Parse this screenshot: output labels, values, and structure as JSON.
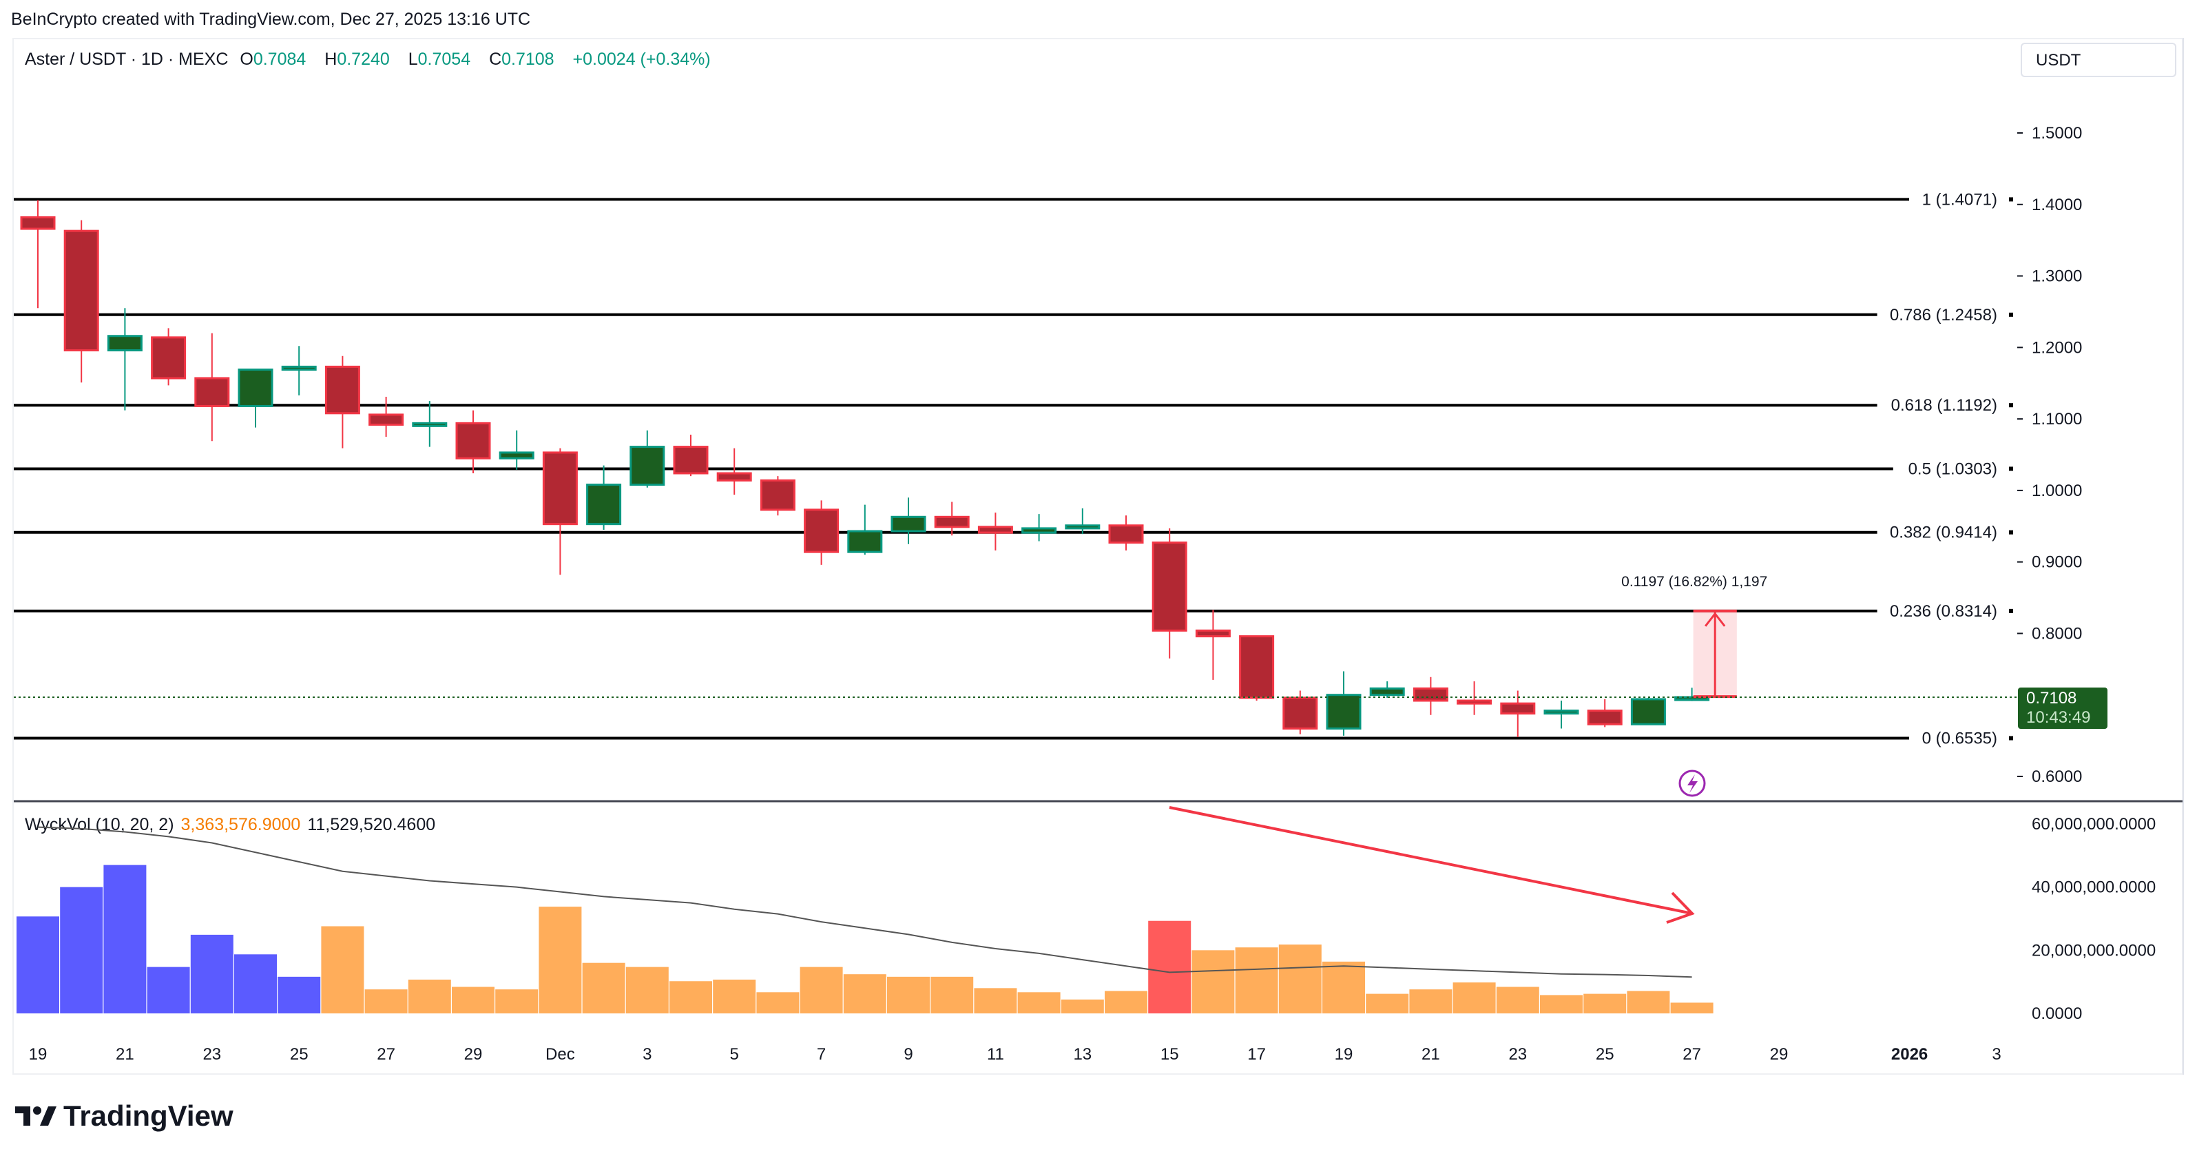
{
  "header": {
    "credit": "BeInCrypto created with TradingView.com, Dec 27, 2025 13:16 UTC"
  },
  "legend": {
    "symbol": "Aster / USDT · 1D · MEXC",
    "o_label": "O",
    "o": "0.7084",
    "h_label": "H",
    "h": "0.7240",
    "l_label": "L",
    "l": "0.7054",
    "c_label": "C",
    "c": "0.7108",
    "change": "+0.0024 (+0.34%)"
  },
  "currency": "USDT",
  "current_price": {
    "value": "0.7108",
    "countdown": "10:43:49"
  },
  "volume_legend": {
    "name": "WyckVol (10, 20, 2)",
    "v1": "3,363,576.9000",
    "v2": "11,529,520.4600"
  },
  "measure": {
    "label": "0.1197 (16.82%) 1,197"
  },
  "brand": {
    "logo": "TradingView"
  },
  "colors": {
    "up": "#089981",
    "up_body": "#1b5e20",
    "down": "#f23645",
    "down_body": "#b22833",
    "vol_blue": "#5b5bff",
    "vol_orange": "#ffad5a",
    "vol_red": "#ff5b5b",
    "arrow": "#f23645",
    "icon": "#9c27b0"
  },
  "chart_data": [
    {
      "type": "candlestick",
      "title": "Aster / USDT · 1D · MEXC",
      "ylim": [
        0.56,
        1.56
      ],
      "yticks": [
        "1.5000",
        "1.4000",
        "1.3000",
        "1.2000",
        "1.1000",
        "1.0000",
        "0.9000",
        "0.8000",
        "0.6000"
      ],
      "ytick_values": [
        1.5,
        1.4,
        1.3,
        1.2,
        1.1,
        1.0,
        0.9,
        0.8,
        0.6
      ],
      "xticks": [
        "19",
        "21",
        "23",
        "25",
        "27",
        "29",
        "Dec",
        "3",
        "5",
        "7",
        "9",
        "11",
        "13",
        "15",
        "17",
        "19",
        "21",
        "23",
        "25",
        "27",
        "29",
        "2026",
        "3"
      ],
      "xtick_days": [
        0,
        2,
        4,
        6,
        8,
        10,
        12,
        14,
        16,
        18,
        20,
        22,
        24,
        26,
        28,
        30,
        32,
        34,
        36,
        38,
        40,
        43,
        45
      ],
      "dates": [
        "Nov 19",
        "Nov 20",
        "Nov 21",
        "Nov 22",
        "Nov 23",
        "Nov 24",
        "Nov 25",
        "Nov 26",
        "Nov 27",
        "Nov 28",
        "Nov 29",
        "Nov 30",
        "Dec 1",
        "Dec 2",
        "Dec 3",
        "Dec 4",
        "Dec 5",
        "Dec 6",
        "Dec 7",
        "Dec 8",
        "Dec 9",
        "Dec 10",
        "Dec 11",
        "Dec 12",
        "Dec 13",
        "Dec 14",
        "Dec 15",
        "Dec 16",
        "Dec 17",
        "Dec 18",
        "Dec 19",
        "Dec 20",
        "Dec 21",
        "Dec 22",
        "Dec 23",
        "Dec 24",
        "Dec 25",
        "Dec 26",
        "Dec 27"
      ],
      "ohlc": [
        [
          1.382,
          1.406,
          1.255,
          1.366
        ],
        [
          1.363,
          1.378,
          1.151,
          1.196
        ],
        [
          1.196,
          1.255,
          1.112,
          1.216
        ],
        [
          1.214,
          1.227,
          1.147,
          1.157
        ],
        [
          1.157,
          1.22,
          1.069,
          1.118
        ],
        [
          1.118,
          1.169,
          1.088,
          1.169
        ],
        [
          1.169,
          1.202,
          1.133,
          1.173
        ],
        [
          1.173,
          1.188,
          1.059,
          1.108
        ],
        [
          1.106,
          1.131,
          1.075,
          1.092
        ],
        [
          1.092,
          1.125,
          1.061,
          1.094
        ],
        [
          1.094,
          1.112,
          1.024,
          1.045
        ],
        [
          1.045,
          1.084,
          1.029,
          1.053
        ],
        [
          1.053,
          1.059,
          0.882,
          0.953
        ],
        [
          0.953,
          1.035,
          0.945,
          1.008
        ],
        [
          1.008,
          1.084,
          1.004,
          1.061
        ],
        [
          1.061,
          1.078,
          1.02,
          1.024
        ],
        [
          1.024,
          1.059,
          0.994,
          1.014
        ],
        [
          1.014,
          1.02,
          0.965,
          0.973
        ],
        [
          0.973,
          0.986,
          0.896,
          0.914
        ],
        [
          0.914,
          0.98,
          0.91,
          0.943
        ],
        [
          0.943,
          0.99,
          0.925,
          0.963
        ],
        [
          0.963,
          0.984,
          0.937,
          0.949
        ],
        [
          0.949,
          0.969,
          0.916,
          0.941
        ],
        [
          0.941,
          0.967,
          0.929,
          0.947
        ],
        [
          0.947,
          0.975,
          0.939,
          0.951
        ],
        [
          0.951,
          0.965,
          0.916,
          0.927
        ],
        [
          0.927,
          0.947,
          0.765,
          0.804
        ],
        [
          0.804,
          0.833,
          0.735,
          0.796
        ],
        [
          0.796,
          0.796,
          0.706,
          0.71
        ],
        [
          0.71,
          0.72,
          0.659,
          0.667
        ],
        [
          0.667,
          0.747,
          0.657,
          0.714
        ],
        [
          0.714,
          0.733,
          0.71,
          0.723
        ],
        [
          0.723,
          0.739,
          0.686,
          0.706
        ],
        [
          0.706,
          0.733,
          0.686,
          0.702
        ],
        [
          0.702,
          0.72,
          0.655,
          0.688
        ],
        [
          0.688,
          0.706,
          0.667,
          0.692
        ],
        [
          0.692,
          0.708,
          0.669,
          0.673
        ],
        [
          0.673,
          0.71,
          0.673,
          0.708
        ],
        [
          0.7084,
          0.724,
          0.7054,
          0.7108
        ]
      ],
      "fib_levels": [
        {
          "label": "1 (1.4071)",
          "value": 1.4071
        },
        {
          "label": "0.786 (1.2458)",
          "value": 1.2458
        },
        {
          "label": "0.618 (1.1192)",
          "value": 1.1192
        },
        {
          "label": "0.5 (1.0303)",
          "value": 1.0303
        },
        {
          "label": "0.382 (0.9414)",
          "value": 0.9414
        },
        {
          "label": "0.236 (0.8314)",
          "value": 0.8314
        },
        {
          "label": "0 (0.6535)",
          "value": 0.6535
        }
      ],
      "measure": {
        "from": 0.7117,
        "to": 0.8314,
        "change": 0.1197,
        "percent": 16.82
      }
    },
    {
      "type": "bar",
      "title": "WyckVol (10, 20, 2)",
      "ylim": [
        0,
        60000000
      ],
      "yticks": [
        "60,000,000.0000",
        "40,000,000.0000",
        "20,000,000.0000",
        "0.0000"
      ],
      "ytick_values": [
        60000000,
        40000000,
        20000000,
        0
      ],
      "volumes_millions": [
        30.7,
        40,
        47,
        14.7,
        24.9,
        18.7,
        11.6,
        27.6,
        7.6,
        10.7,
        8.4,
        7.6,
        33.8,
        16,
        14.7,
        10.2,
        10.7,
        6.7,
        14.7,
        12.4,
        11.6,
        11.6,
        8,
        6.7,
        4.4,
        7.1,
        29.3,
        20,
        20.9,
        21.8,
        16.4,
        6.2,
        7.6,
        9.8,
        8.4,
        5.8,
        6.2,
        7.1,
        3.4
      ],
      "bar_colors": [
        "blue",
        "blue",
        "blue",
        "blue",
        "blue",
        "blue",
        "blue",
        "orange",
        "orange",
        "orange",
        "orange",
        "orange",
        "orange",
        "orange",
        "orange",
        "orange",
        "orange",
        "orange",
        "orange",
        "orange",
        "orange",
        "orange",
        "orange",
        "orange",
        "orange",
        "orange",
        "red",
        "orange",
        "orange",
        "orange",
        "orange",
        "orange",
        "orange",
        "orange",
        "orange",
        "orange",
        "orange",
        "orange",
        "orange"
      ],
      "average_millions": [
        59,
        58.5,
        57.5,
        56,
        54,
        51,
        48,
        45,
        43.5,
        42,
        41,
        40,
        38.5,
        37,
        36,
        35,
        33,
        31.5,
        29,
        27,
        25,
        22.5,
        20.5,
        19,
        17,
        15,
        13,
        13.5,
        14,
        14.5,
        15,
        14.5,
        14,
        13.5,
        13,
        12.5,
        12.3,
        12,
        11.5
      ],
      "trend_arrow": "decreasing volume Dec 15 → Dec 27"
    }
  ]
}
